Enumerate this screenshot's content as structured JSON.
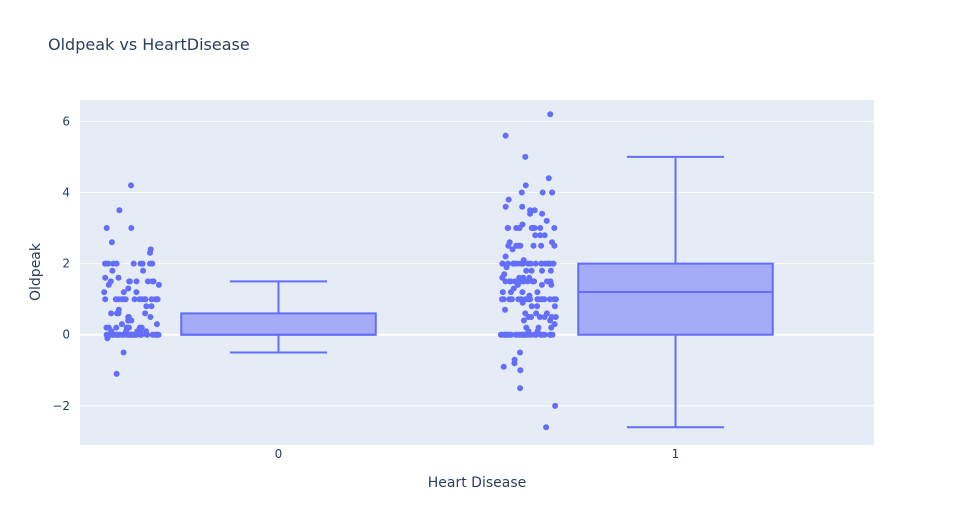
{
  "chart_data": {
    "type": "box",
    "title": "Oldpeak vs HeartDisease",
    "xlabel": "Heart Disease",
    "ylabel": "Oldpeak",
    "categories": [
      "0",
      "1"
    ],
    "ylim": [
      -3.1,
      6.6
    ],
    "y_ticks": [
      -2,
      0,
      2,
      4,
      6
    ],
    "y_tick_labels": [
      "−2",
      "0",
      "2",
      "4",
      "6"
    ],
    "grid": true,
    "colors": {
      "plot_bg": "#e5ecf6",
      "grid": "#ffffff",
      "marker": "#636efa",
      "box_fill": "#a5abf7",
      "box_line": "#636efa"
    },
    "boxes": [
      {
        "category": "0",
        "min": -0.5,
        "q1": 0.0,
        "median": 0.0,
        "q3": 0.6,
        "max": 1.5
      },
      {
        "category": "1",
        "min": -2.6,
        "q1": 0.0,
        "median": 1.2,
        "q3": 2.0,
        "max": 5.0
      }
    ],
    "points": [
      {
        "category": "0",
        "values": [
          0,
          0,
          0,
          0,
          0,
          0,
          0,
          0,
          0,
          0,
          0,
          0,
          0,
          0,
          0,
          0,
          0,
          0,
          0,
          0,
          0,
          0,
          0,
          0,
          0,
          0,
          0,
          0,
          0,
          0,
          0,
          0,
          0,
          0,
          0,
          0,
          0,
          0,
          0,
          0,
          0,
          0,
          0,
          0,
          0,
          0,
          0,
          0,
          0.1,
          0.1,
          0.1,
          0.1,
          0.1,
          0.2,
          0.2,
          0.2,
          0.2,
          0.2,
          0.2,
          0.2,
          0.3,
          0.3,
          0.4,
          0.4,
          0.4,
          0.5,
          0.5,
          0.5,
          0.6,
          0.6,
          0.6,
          0.6,
          0.7,
          0.8,
          0.8,
          1,
          1,
          1,
          1,
          1,
          1,
          1,
          1,
          1,
          1,
          1,
          1,
          1,
          1,
          1,
          1.2,
          1.2,
          1.2,
          1.3,
          1.4,
          1.4,
          1.5,
          1.5,
          1.5,
          1.5,
          1.5,
          1.5,
          1.5,
          1.6,
          1.6,
          1.8,
          1.8,
          2,
          2,
          2,
          2,
          2,
          2,
          2,
          2,
          2,
          2,
          2.3,
          2.4,
          2.6,
          3,
          3,
          3.5,
          4.2,
          -0.1,
          -0.5,
          -1.1
        ]
      },
      {
        "category": "1",
        "values": [
          0,
          0,
          0,
          0,
          0,
          0,
          0,
          0,
          0,
          0,
          0,
          0,
          0,
          0,
          0,
          0,
          0,
          0,
          0,
          0,
          0,
          0,
          0,
          0,
          0,
          0,
          0,
          0,
          0,
          0,
          0,
          0,
          0,
          0,
          0,
          0,
          0,
          0.1,
          0.1,
          0.2,
          0.2,
          0.2,
          0.3,
          0.4,
          0.4,
          0.5,
          0.5,
          0.5,
          0.5,
          0.5,
          0.5,
          0.6,
          0.6,
          0.6,
          0.7,
          0.8,
          0.8,
          0.8,
          0.9,
          1,
          1,
          1,
          1,
          1,
          1,
          1,
          1,
          1,
          1,
          1,
          1,
          1,
          1,
          1,
          1,
          1,
          1,
          1,
          1.1,
          1.2,
          1.2,
          1.2,
          1.2,
          1.3,
          1.4,
          1.4,
          1.4,
          1.5,
          1.5,
          1.5,
          1.5,
          1.5,
          1.5,
          1.5,
          1.5,
          1.5,
          1.5,
          1.5,
          1.5,
          1.6,
          1.6,
          1.6,
          1.6,
          1.7,
          1.8,
          1.8,
          1.8,
          1.8,
          1.9,
          2,
          2,
          2,
          2,
          2,
          2,
          2,
          2,
          2,
          2,
          2,
          2,
          2,
          2,
          2,
          2,
          2,
          2,
          2,
          2,
          2,
          2.1,
          2.2,
          2.4,
          2.5,
          2.5,
          2.5,
          2.5,
          2.5,
          2.5,
          2.5,
          2.6,
          2.6,
          2.8,
          2.8,
          2.8,
          3,
          3,
          3,
          3,
          3,
          3,
          3,
          3,
          3,
          3,
          3,
          3.1,
          3.2,
          3.4,
          3.4,
          3.5,
          3.5,
          3.6,
          3.6,
          3.8,
          4,
          4,
          4,
          4,
          4.2,
          4.4,
          5,
          5.6,
          6.2,
          -0.5,
          -0.7,
          -0.8,
          -0.9,
          -1,
          -1.5,
          -2,
          -2.6
        ]
      }
    ]
  }
}
